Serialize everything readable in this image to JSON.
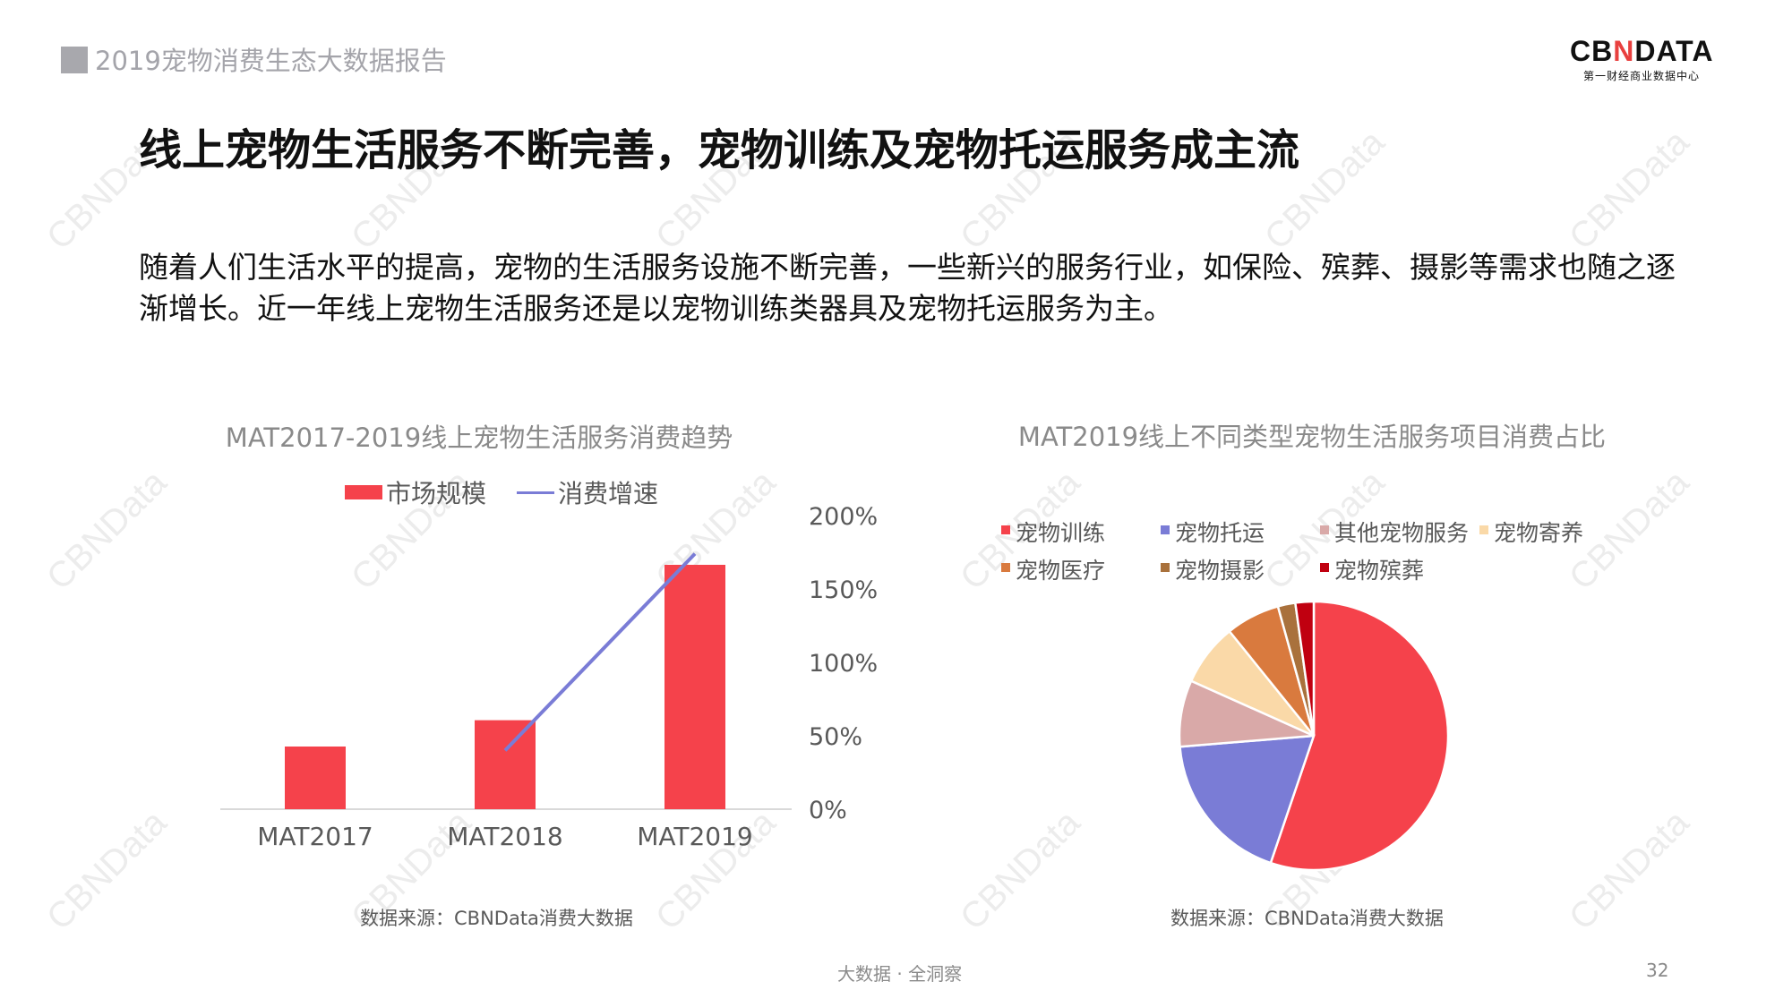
{
  "header": {
    "report_title": "2019宠物消费生态大数据报告",
    "logo_prefix": "CB",
    "logo_mark": "N",
    "logo_suffix": "DATA",
    "logo_subtitle": "第一财经商业数据中心"
  },
  "watermark": "CBNData",
  "main": {
    "heading": "线上宠物生活服务不断完善，宠物训练及宠物托运服务成主流",
    "body": "随着人们生活水平的提高，宠物的生活服务设施不断完善，一些新兴的服务行业，如保险、殡葬、摄影等需求也随之逐渐增长。近一年线上宠物生活服务还是以宠物训练类器具及宠物托运服务为主。"
  },
  "chart_data": [
    {
      "type": "bar",
      "title": "MAT2017-2019线上宠物生活服务消费趋势",
      "categories": [
        "MAT2017",
        "MAT2018",
        "MAT2019"
      ],
      "series": [
        {
          "name": "市场规模",
          "type": "bar",
          "color": "#f5424b",
          "values": [
            1.0,
            1.42,
            3.9
          ]
        },
        {
          "name": "消费增速",
          "type": "line",
          "color": "#7a7cd6",
          "axis": "right",
          "values": [
            null,
            40,
            174
          ]
        }
      ],
      "y2_ticks": [
        "0%",
        "50%",
        "100%",
        "150%",
        "200%"
      ],
      "y2lim": [
        0,
        200
      ],
      "legend_position": "top",
      "grid": false,
      "source": "数据来源：CBNData消费大数据"
    },
    {
      "type": "pie",
      "title": "MAT2019线上不同类型宠物生活服务项目消费占比",
      "categories": [
        "宠物训练",
        "宠物托运",
        "其他宠物服务",
        "宠物寄养",
        "宠物医疗",
        "宠物摄影",
        "宠物殡葬"
      ],
      "values": [
        55.2,
        18.5,
        8.0,
        7.5,
        6.5,
        2.1,
        2.2
      ],
      "colors": [
        "#f5424b",
        "#7a7cd6",
        "#d9a9a8",
        "#fad9a8",
        "#d97a3e",
        "#a9713c",
        "#c00010"
      ],
      "legend_position": "top",
      "source": "数据来源：CBNData消费大数据"
    }
  ],
  "footer": {
    "slogan": "大数据 · 全洞察",
    "page_number": "32"
  }
}
